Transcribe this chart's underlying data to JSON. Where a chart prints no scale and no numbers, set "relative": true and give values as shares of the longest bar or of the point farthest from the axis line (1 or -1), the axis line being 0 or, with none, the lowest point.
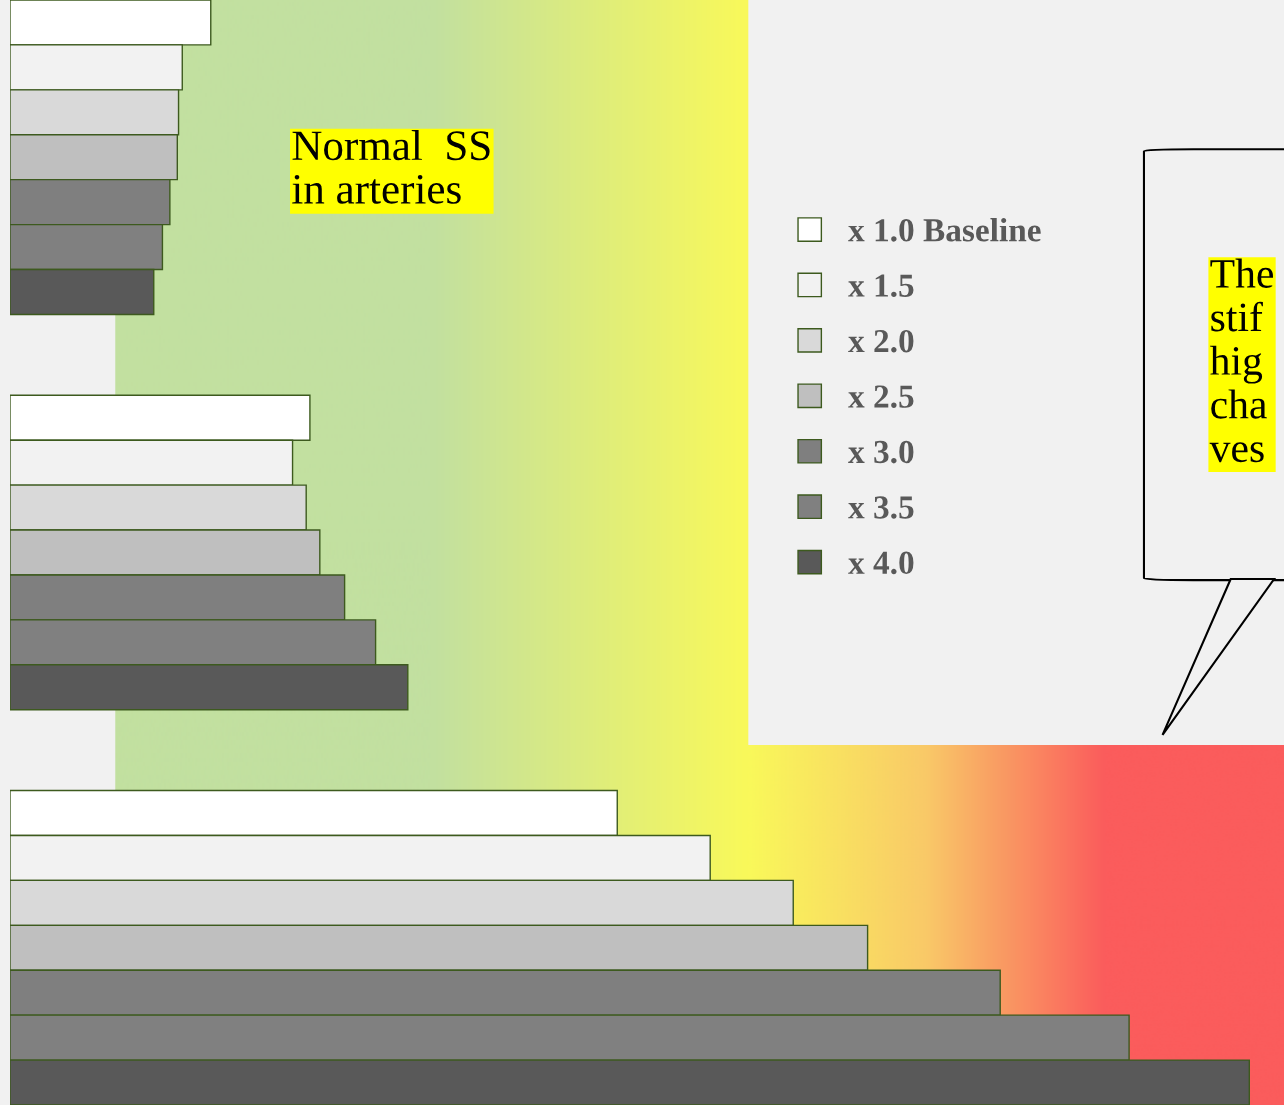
{
  "chart_data": {
    "type": "bar",
    "orientation": "horizontal",
    "relative": true,
    "categories": [
      null,
      null,
      null
    ],
    "series": [
      {
        "name": "x 1.0 Baseline",
        "color": "#ffffff",
        "values": [
          0.162,
          0.242,
          0.49
        ]
      },
      {
        "name": "x 1.5",
        "color": "#f2f2f2",
        "values": [
          0.139,
          0.228,
          0.565
        ]
      },
      {
        "name": "x 2.0",
        "color": "#d9d9d9",
        "values": [
          0.136,
          0.239,
          0.632
        ]
      },
      {
        "name": "x 2.5",
        "color": "#bfbfbf",
        "values": [
          0.135,
          0.25,
          0.692
        ]
      },
      {
        "name": "x 3.0",
        "color": "#7f7f7f",
        "values": [
          0.129,
          0.27,
          0.799
        ]
      },
      {
        "name": "x 3.5",
        "color": "#808080",
        "values": [
          0.123,
          0.295,
          0.903
        ]
      },
      {
        "name": "x 4.0",
        "color": "#595959",
        "values": [
          0.116,
          0.321,
          1.0
        ]
      }
    ],
    "legend": "top right",
    "annotations": [
      "Normal  SS\nin arteries",
      "The\nstif\nhig\ncha\nves"
    ]
  }
}
